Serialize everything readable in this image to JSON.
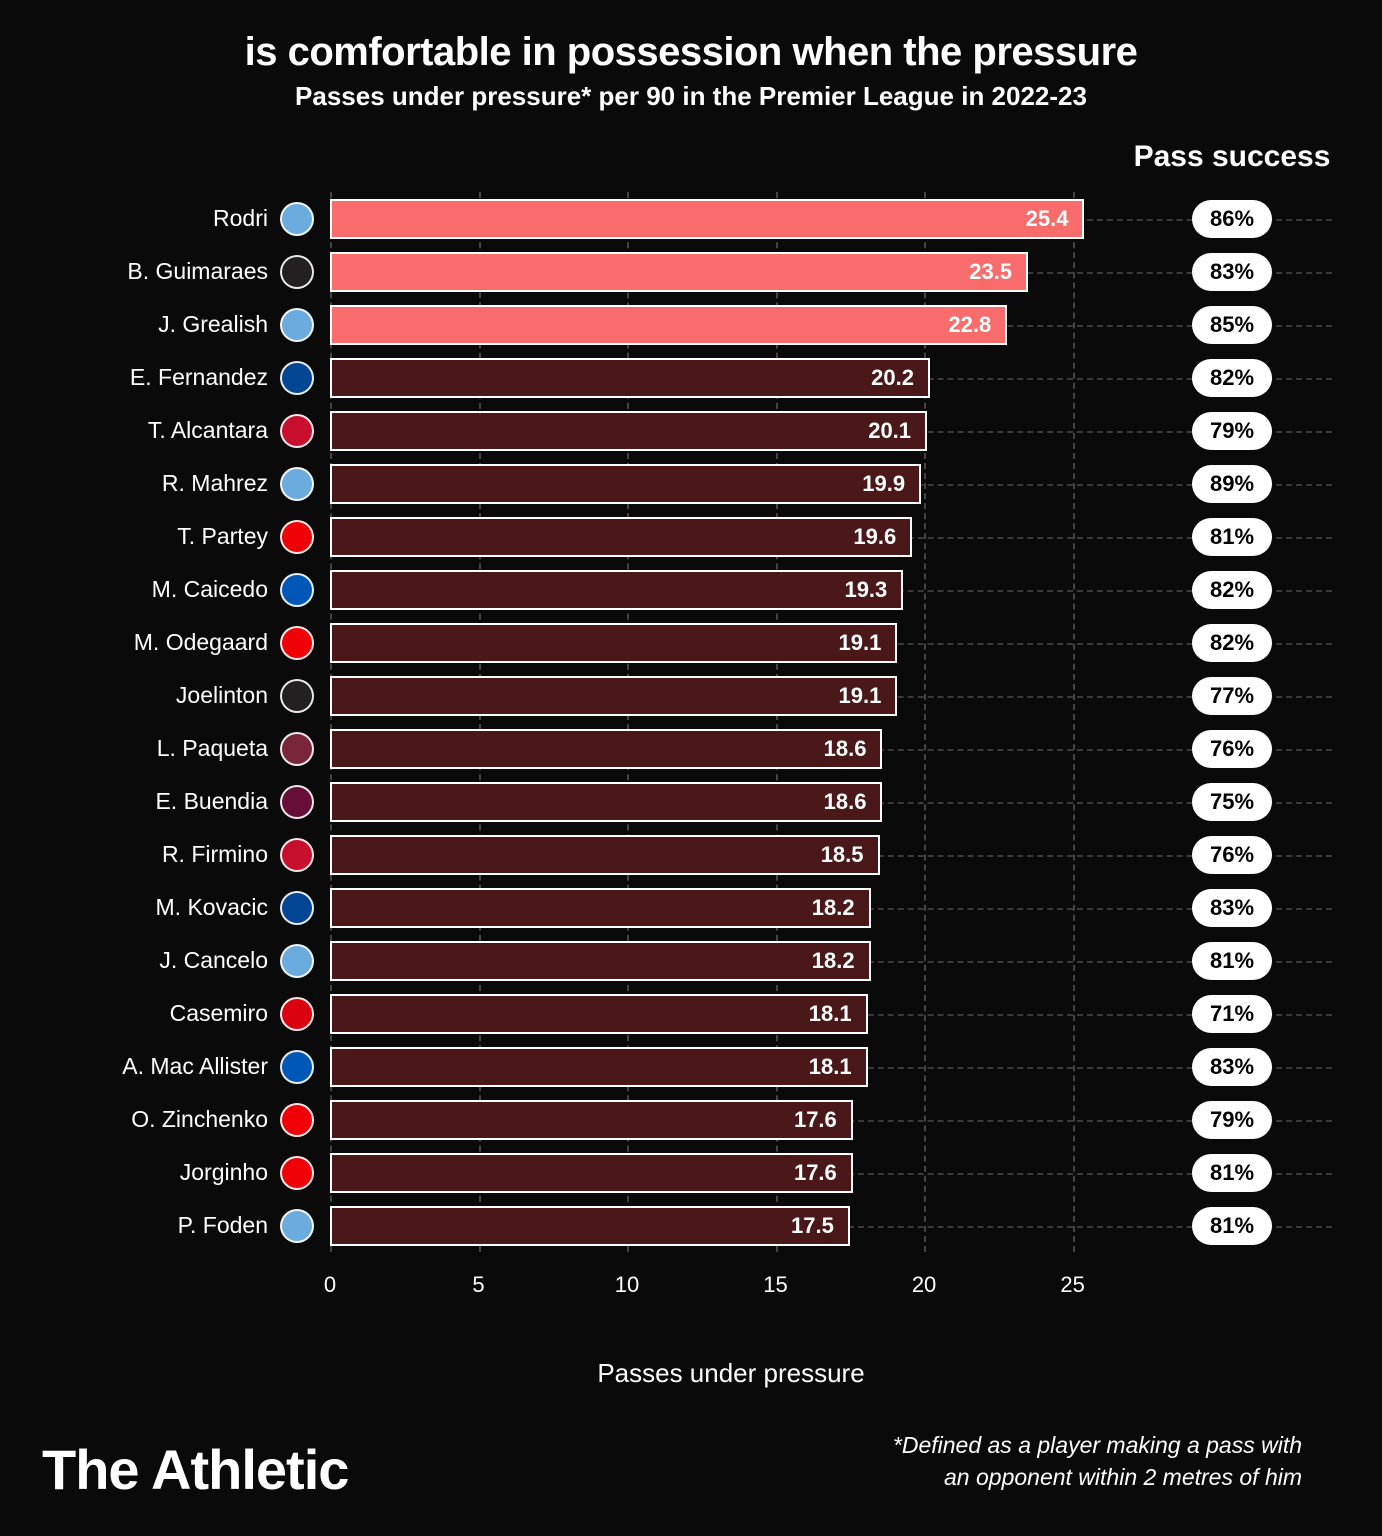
{
  "title": "is comfortable in possession when the pressure",
  "subtitle": "Passes under pressure* per 90 in the Premier League in 2022-23",
  "pass_success_header": "Pass success",
  "x_axis_label": "Passes under pressure",
  "footnote_line1": "*Defined as a player making a pass with",
  "footnote_line2": "an opponent within 2 metres of him",
  "brand": "The Athletic",
  "chart": {
    "type": "bar-horizontal",
    "x_min": 0,
    "x_max": 27,
    "x_ticks": [
      0,
      5,
      10,
      15,
      20,
      25
    ],
    "bar_border_color": "#ffffff",
    "background_color": "#0a0a0a",
    "grid_color": "#444444",
    "dash_color": "#3a3a3a",
    "highlight_bar_color": "#f86c6c",
    "normal_bar_color": "#4a1818",
    "pill_bg": "#ffffff",
    "pill_text_color": "#000000",
    "text_color": "#ffffff"
  },
  "club_colors": {
    "mancity": "#6CABDD",
    "newcastle": "#241F20",
    "chelsea": "#034694",
    "liverpool": "#C8102E",
    "arsenal": "#EF0107",
    "brighton": "#0057B8",
    "westham": "#7A263A",
    "astonvilla": "#670E36",
    "manutd": "#DA020E"
  },
  "players": [
    {
      "name": "Rodri",
      "club": "mancity",
      "value": 25.4,
      "success": "86%",
      "highlight": true
    },
    {
      "name": "B. Guimaraes",
      "club": "newcastle",
      "value": 23.5,
      "success": "83%",
      "highlight": true
    },
    {
      "name": "J. Grealish",
      "club": "mancity",
      "value": 22.8,
      "success": "85%",
      "highlight": true
    },
    {
      "name": "E. Fernandez",
      "club": "chelsea",
      "value": 20.2,
      "success": "82%",
      "highlight": false
    },
    {
      "name": "T. Alcantara",
      "club": "liverpool",
      "value": 20.1,
      "success": "79%",
      "highlight": false
    },
    {
      "name": "R. Mahrez",
      "club": "mancity",
      "value": 19.9,
      "success": "89%",
      "highlight": false
    },
    {
      "name": "T. Partey",
      "club": "arsenal",
      "value": 19.6,
      "success": "81%",
      "highlight": false
    },
    {
      "name": "M. Caicedo",
      "club": "brighton",
      "value": 19.3,
      "success": "82%",
      "highlight": false
    },
    {
      "name": "M. Odegaard",
      "club": "arsenal",
      "value": 19.1,
      "success": "82%",
      "highlight": false
    },
    {
      "name": "Joelinton",
      "club": "newcastle",
      "value": 19.1,
      "success": "77%",
      "highlight": false
    },
    {
      "name": "L. Paqueta",
      "club": "westham",
      "value": 18.6,
      "success": "76%",
      "highlight": false
    },
    {
      "name": "E. Buendia",
      "club": "astonvilla",
      "value": 18.6,
      "success": "75%",
      "highlight": false
    },
    {
      "name": "R. Firmino",
      "club": "liverpool",
      "value": 18.5,
      "success": "76%",
      "highlight": false
    },
    {
      "name": "M. Kovacic",
      "club": "chelsea",
      "value": 18.2,
      "success": "83%",
      "highlight": false
    },
    {
      "name": "J. Cancelo",
      "club": "mancity",
      "value": 18.2,
      "success": "81%",
      "highlight": false
    },
    {
      "name": "Casemiro",
      "club": "manutd",
      "value": 18.1,
      "success": "71%",
      "highlight": false
    },
    {
      "name": "A. Mac Allister",
      "club": "brighton",
      "value": 18.1,
      "success": "83%",
      "highlight": false
    },
    {
      "name": "O. Zinchenko",
      "club": "arsenal",
      "value": 17.6,
      "success": "79%",
      "highlight": false
    },
    {
      "name": "Jorginho",
      "club": "arsenal",
      "value": 17.6,
      "success": "81%",
      "highlight": false
    },
    {
      "name": "P. Foden",
      "club": "mancity",
      "value": 17.5,
      "success": "81%",
      "highlight": false
    }
  ]
}
